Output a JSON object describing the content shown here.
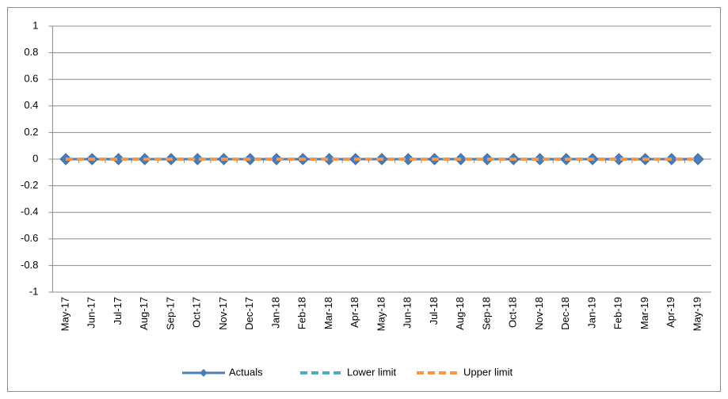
{
  "chart_data": {
    "type": "line",
    "categories": [
      "May-17",
      "Jun-17",
      "Jul-17",
      "Aug-17",
      "Sep-17",
      "Oct-17",
      "Nov-17",
      "Dec-17",
      "Jan-18",
      "Feb-18",
      "Mar-18",
      "Apr-18",
      "May-18",
      "Jun-18",
      "Jul-18",
      "Aug-18",
      "Sep-18",
      "Oct-18",
      "Nov-18",
      "Dec-18",
      "Jan-19",
      "Feb-19",
      "Mar-19",
      "Apr-19",
      "May-19"
    ],
    "series": [
      {
        "name": "Actuals",
        "color": "#4a7ebb",
        "marker": "diamond",
        "dash": false,
        "values": [
          0,
          0,
          0,
          0,
          0,
          0,
          0,
          0,
          0,
          0,
          0,
          0,
          0,
          0,
          0,
          0,
          0,
          0,
          0,
          0,
          0,
          0,
          0,
          0,
          0
        ]
      },
      {
        "name": "Lower limit",
        "color": "#4bacc6",
        "dash": true,
        "values": [
          0,
          0,
          0,
          0,
          0,
          0,
          0,
          0,
          0,
          0,
          0,
          0,
          0,
          0,
          0,
          0,
          0,
          0,
          0,
          0,
          0,
          0,
          0,
          0,
          0
        ]
      },
      {
        "name": "Upper limit",
        "color": "#f79646",
        "dash": true,
        "values": [
          0,
          0,
          0,
          0,
          0,
          0,
          0,
          0,
          0,
          0,
          0,
          0,
          0,
          0,
          0,
          0,
          0,
          0,
          0,
          0,
          0,
          0,
          0,
          0,
          0
        ]
      }
    ],
    "ylim": [
      -1,
      1
    ],
    "yticks": [
      -1,
      -0.8,
      -0.6,
      -0.4,
      -0.2,
      0,
      0.2,
      0.4,
      0.6,
      0.8,
      1
    ],
    "grid": true,
    "legend": "bottom"
  }
}
